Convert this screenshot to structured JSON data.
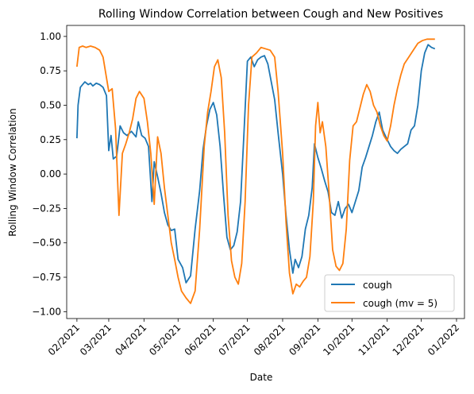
{
  "chart_data": {
    "type": "line",
    "title": "Rolling Window Correlation between Cough and New Positives",
    "xlabel": "Date",
    "ylabel": "Rolling Window Correlation",
    "xlim": [
      "2021-01-23",
      "2022-01-08"
    ],
    "ylim": [
      -1.05,
      1.08
    ],
    "x_ticks": [
      "2021-02-01",
      "2021-03-01",
      "2021-04-01",
      "2021-05-01",
      "2021-06-01",
      "2021-07-01",
      "2021-08-01",
      "2021-09-01",
      "2021-10-01",
      "2021-11-01",
      "2021-12-01",
      "2022-01-01"
    ],
    "x_tick_labels": [
      "02/2021",
      "03/2021",
      "04/2021",
      "05/2021",
      "06/2021",
      "07/2021",
      "08/2021",
      "09/2021",
      "10/2021",
      "11/2021",
      "12/2021",
      "01/2022"
    ],
    "y_ticks": [
      -1.0,
      -0.75,
      -0.5,
      -0.25,
      0.0,
      0.25,
      0.5,
      0.75,
      1.0
    ],
    "y_tick_labels": [
      "−1.00",
      "−0.75",
      "−0.50",
      "−0.25",
      "0.00",
      "0.25",
      "0.50",
      "0.75",
      "1.00"
    ],
    "grid": false,
    "legend_position": "lower right",
    "series": [
      {
        "name": "cough",
        "color": "#1f77b4",
        "points": [
          [
            "2021-02-01",
            0.26
          ],
          [
            "2021-02-02",
            0.5
          ],
          [
            "2021-02-04",
            0.63
          ],
          [
            "2021-02-06",
            0.65
          ],
          [
            "2021-02-08",
            0.67
          ],
          [
            "2021-02-11",
            0.65
          ],
          [
            "2021-02-13",
            0.66
          ],
          [
            "2021-02-15",
            0.64
          ],
          [
            "2021-02-18",
            0.66
          ],
          [
            "2021-02-21",
            0.65
          ],
          [
            "2021-02-24",
            0.63
          ],
          [
            "2021-02-27",
            0.57
          ],
          [
            "2021-03-01",
            0.17
          ],
          [
            "2021-03-03",
            0.28
          ],
          [
            "2021-03-05",
            0.11
          ],
          [
            "2021-03-08",
            0.13
          ],
          [
            "2021-03-11",
            0.35
          ],
          [
            "2021-03-14",
            0.3
          ],
          [
            "2021-03-17",
            0.28
          ],
          [
            "2021-03-21",
            0.31
          ],
          [
            "2021-03-25",
            0.27
          ],
          [
            "2021-03-27",
            0.38
          ],
          [
            "2021-03-30",
            0.28
          ],
          [
            "2021-04-02",
            0.26
          ],
          [
            "2021-04-05",
            0.2
          ],
          [
            "2021-04-08",
            -0.2
          ],
          [
            "2021-04-10",
            0.09
          ],
          [
            "2021-04-13",
            -0.02
          ],
          [
            "2021-04-16",
            -0.14
          ],
          [
            "2021-04-19",
            -0.28
          ],
          [
            "2021-04-22",
            -0.37
          ],
          [
            "2021-04-25",
            -0.41
          ],
          [
            "2021-04-28",
            -0.4
          ],
          [
            "2021-05-01",
            -0.62
          ],
          [
            "2021-05-05",
            -0.68
          ],
          [
            "2021-05-08",
            -0.79
          ],
          [
            "2021-05-12",
            -0.74
          ],
          [
            "2021-05-16",
            -0.4
          ],
          [
            "2021-05-20",
            -0.12
          ],
          [
            "2021-05-23",
            0.18
          ],
          [
            "2021-05-26",
            0.35
          ],
          [
            "2021-05-29",
            0.47
          ],
          [
            "2021-06-01",
            0.52
          ],
          [
            "2021-06-04",
            0.43
          ],
          [
            "2021-06-07",
            0.2
          ],
          [
            "2021-06-10",
            -0.15
          ],
          [
            "2021-06-13",
            -0.46
          ],
          [
            "2021-06-16",
            -0.55
          ],
          [
            "2021-06-19",
            -0.52
          ],
          [
            "2021-06-22",
            -0.42
          ],
          [
            "2021-06-25",
            -0.2
          ],
          [
            "2021-06-28",
            0.3
          ],
          [
            "2021-07-01",
            0.82
          ],
          [
            "2021-07-04",
            0.85
          ],
          [
            "2021-07-07",
            0.78
          ],
          [
            "2021-07-10",
            0.83
          ],
          [
            "2021-07-13",
            0.85
          ],
          [
            "2021-07-16",
            0.86
          ],
          [
            "2021-07-19",
            0.8
          ],
          [
            "2021-07-22",
            0.67
          ],
          [
            "2021-07-25",
            0.54
          ],
          [
            "2021-07-28",
            0.3
          ],
          [
            "2021-08-01",
            0.0
          ],
          [
            "2021-08-04",
            -0.3
          ],
          [
            "2021-08-07",
            -0.55
          ],
          [
            "2021-08-10",
            -0.72
          ],
          [
            "2021-08-12",
            -0.62
          ],
          [
            "2021-08-15",
            -0.68
          ],
          [
            "2021-08-18",
            -0.6
          ],
          [
            "2021-08-21",
            -0.4
          ],
          [
            "2021-08-24",
            -0.3
          ],
          [
            "2021-08-27",
            -0.1
          ],
          [
            "2021-08-29",
            0.22
          ],
          [
            "2021-09-01",
            0.12
          ],
          [
            "2021-09-04",
            0.04
          ],
          [
            "2021-09-07",
            -0.05
          ],
          [
            "2021-09-10",
            -0.13
          ],
          [
            "2021-09-13",
            -0.28
          ],
          [
            "2021-09-16",
            -0.3
          ],
          [
            "2021-09-19",
            -0.2
          ],
          [
            "2021-09-22",
            -0.32
          ],
          [
            "2021-09-25",
            -0.25
          ],
          [
            "2021-09-28",
            -0.22
          ],
          [
            "2021-10-01",
            -0.28
          ],
          [
            "2021-10-04",
            -0.2
          ],
          [
            "2021-10-07",
            -0.12
          ],
          [
            "2021-10-10",
            0.05
          ],
          [
            "2021-10-13",
            0.12
          ],
          [
            "2021-10-16",
            0.2
          ],
          [
            "2021-10-19",
            0.28
          ],
          [
            "2021-10-22",
            0.38
          ],
          [
            "2021-10-25",
            0.45
          ],
          [
            "2021-10-28",
            0.32
          ],
          [
            "2021-11-01",
            0.25
          ],
          [
            "2021-11-04",
            0.2
          ],
          [
            "2021-11-07",
            0.17
          ],
          [
            "2021-11-10",
            0.15
          ],
          [
            "2021-11-13",
            0.18
          ],
          [
            "2021-11-16",
            0.2
          ],
          [
            "2021-11-19",
            0.22
          ],
          [
            "2021-11-22",
            0.32
          ],
          [
            "2021-11-25",
            0.35
          ],
          [
            "2021-11-28",
            0.5
          ],
          [
            "2021-12-01",
            0.75
          ],
          [
            "2021-12-04",
            0.88
          ],
          [
            "2021-12-07",
            0.94
          ],
          [
            "2021-12-10",
            0.92
          ],
          [
            "2021-12-13",
            0.91
          ]
        ]
      },
      {
        "name": "cough (mv = 5)",
        "color": "#ff7f0e",
        "points": [
          [
            "2021-02-01",
            0.78
          ],
          [
            "2021-02-03",
            0.92
          ],
          [
            "2021-02-06",
            0.93
          ],
          [
            "2021-02-09",
            0.92
          ],
          [
            "2021-02-13",
            0.93
          ],
          [
            "2021-02-17",
            0.92
          ],
          [
            "2021-02-21",
            0.9
          ],
          [
            "2021-02-24",
            0.85
          ],
          [
            "2021-02-27",
            0.7
          ],
          [
            "2021-03-01",
            0.6
          ],
          [
            "2021-03-04",
            0.62
          ],
          [
            "2021-03-07",
            0.33
          ],
          [
            "2021-03-10",
            -0.3
          ],
          [
            "2021-03-13",
            0.15
          ],
          [
            "2021-03-16",
            0.22
          ],
          [
            "2021-03-19",
            0.3
          ],
          [
            "2021-03-22",
            0.4
          ],
          [
            "2021-03-25",
            0.55
          ],
          [
            "2021-03-28",
            0.6
          ],
          [
            "2021-04-01",
            0.55
          ],
          [
            "2021-04-04",
            0.38
          ],
          [
            "2021-04-07",
            0.15
          ],
          [
            "2021-04-10",
            -0.22
          ],
          [
            "2021-04-13",
            0.27
          ],
          [
            "2021-04-16",
            0.15
          ],
          [
            "2021-04-19",
            -0.1
          ],
          [
            "2021-04-22",
            -0.3
          ],
          [
            "2021-04-25",
            -0.5
          ],
          [
            "2021-04-28",
            -0.62
          ],
          [
            "2021-05-01",
            -0.75
          ],
          [
            "2021-05-04",
            -0.85
          ],
          [
            "2021-05-08",
            -0.9
          ],
          [
            "2021-05-12",
            -0.94
          ],
          [
            "2021-05-16",
            -0.85
          ],
          [
            "2021-05-20",
            -0.4
          ],
          [
            "2021-05-24",
            0.2
          ],
          [
            "2021-05-27",
            0.45
          ],
          [
            "2021-05-30",
            0.6
          ],
          [
            "2021-06-02",
            0.78
          ],
          [
            "2021-06-05",
            0.83
          ],
          [
            "2021-06-08",
            0.7
          ],
          [
            "2021-06-11",
            0.3
          ],
          [
            "2021-06-14",
            -0.3
          ],
          [
            "2021-06-17",
            -0.63
          ],
          [
            "2021-06-20",
            -0.75
          ],
          [
            "2021-06-23",
            -0.8
          ],
          [
            "2021-06-26",
            -0.65
          ],
          [
            "2021-06-29",
            -0.2
          ],
          [
            "2021-07-02",
            0.5
          ],
          [
            "2021-07-05",
            0.85
          ],
          [
            "2021-07-09",
            0.88
          ],
          [
            "2021-07-13",
            0.92
          ],
          [
            "2021-07-17",
            0.91
          ],
          [
            "2021-07-21",
            0.9
          ],
          [
            "2021-07-25",
            0.85
          ],
          [
            "2021-07-28",
            0.6
          ],
          [
            "2021-08-01",
            0.15
          ],
          [
            "2021-08-04",
            -0.35
          ],
          [
            "2021-08-07",
            -0.72
          ],
          [
            "2021-08-10",
            -0.87
          ],
          [
            "2021-08-13",
            -0.8
          ],
          [
            "2021-08-16",
            -0.82
          ],
          [
            "2021-08-19",
            -0.78
          ],
          [
            "2021-08-22",
            -0.75
          ],
          [
            "2021-08-25",
            -0.6
          ],
          [
            "2021-08-28",
            -0.2
          ],
          [
            "2021-08-30",
            0.35
          ],
          [
            "2021-09-01",
            0.52
          ],
          [
            "2021-09-03",
            0.3
          ],
          [
            "2021-09-05",
            0.38
          ],
          [
            "2021-09-08",
            0.2
          ],
          [
            "2021-09-11",
            -0.15
          ],
          [
            "2021-09-14",
            -0.55
          ],
          [
            "2021-09-17",
            -0.67
          ],
          [
            "2021-09-20",
            -0.7
          ],
          [
            "2021-09-23",
            -0.65
          ],
          [
            "2021-09-26",
            -0.4
          ],
          [
            "2021-09-29",
            0.1
          ],
          [
            "2021-10-02",
            0.35
          ],
          [
            "2021-10-05",
            0.38
          ],
          [
            "2021-10-08",
            0.48
          ],
          [
            "2021-10-11",
            0.58
          ],
          [
            "2021-10-14",
            0.65
          ],
          [
            "2021-10-17",
            0.6
          ],
          [
            "2021-10-20",
            0.5
          ],
          [
            "2021-10-23",
            0.45
          ],
          [
            "2021-10-26",
            0.35
          ],
          [
            "2021-10-29",
            0.28
          ],
          [
            "2021-11-01",
            0.24
          ],
          [
            "2021-11-04",
            0.35
          ],
          [
            "2021-11-07",
            0.5
          ],
          [
            "2021-11-10",
            0.62
          ],
          [
            "2021-11-13",
            0.72
          ],
          [
            "2021-11-16",
            0.8
          ],
          [
            "2021-11-20",
            0.85
          ],
          [
            "2021-11-24",
            0.9
          ],
          [
            "2021-11-28",
            0.95
          ],
          [
            "2021-12-02",
            0.97
          ],
          [
            "2021-12-06",
            0.98
          ],
          [
            "2021-12-10",
            0.98
          ],
          [
            "2021-12-13",
            0.98
          ]
        ]
      }
    ]
  }
}
